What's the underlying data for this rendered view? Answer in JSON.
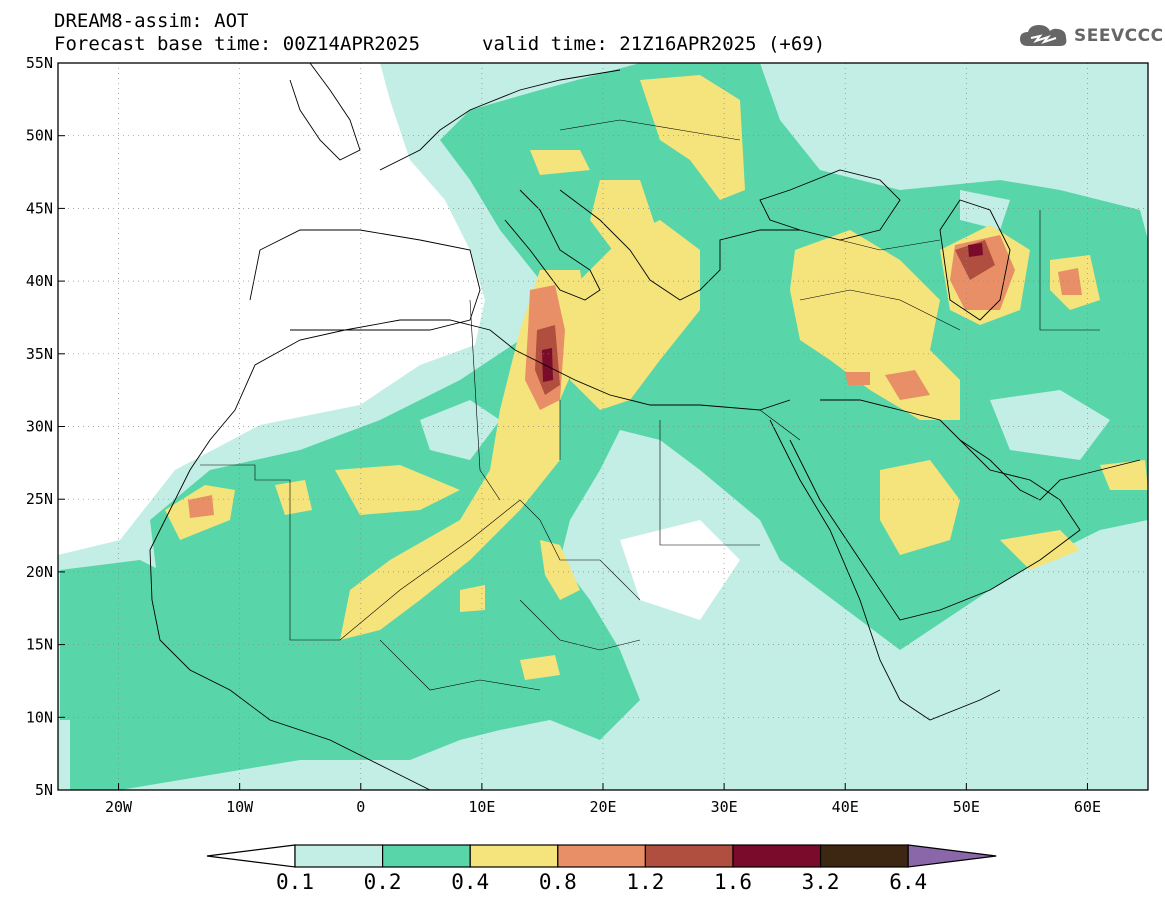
{
  "header": {
    "line1": "DREAM8-assim: AOT",
    "line2": "Forecast base time: 00Z14APR2025",
    "valid": "valid time: 21Z16APR2025 (+69)",
    "logo_text": "SEEVCCC",
    "logo_icon": "cloud-icon"
  },
  "map": {
    "lon_labels": [
      "20W",
      "10W",
      "0",
      "10E",
      "20E",
      "30E",
      "40E",
      "50E",
      "60E"
    ],
    "lat_labels": [
      "55N",
      "50N",
      "45N",
      "40N",
      "35N",
      "30N",
      "25N",
      "20N",
      "15N",
      "10N",
      "5N"
    ],
    "lon_range": [
      -25,
      65
    ],
    "lat_range": [
      5,
      55
    ],
    "grid": "dotted"
  },
  "colorbar": {
    "labels": [
      "0.1",
      "0.2",
      "0.4",
      "0.8",
      "1.2",
      "1.6",
      "3.2",
      "6.4"
    ],
    "colors": [
      "#ffffff",
      "#c2eee6",
      "#58d6a9",
      "#f5e47c",
      "#e88f67",
      "#b04e3f",
      "#7a0b2a",
      "#3d2612",
      "#8a67a8"
    ]
  }
}
